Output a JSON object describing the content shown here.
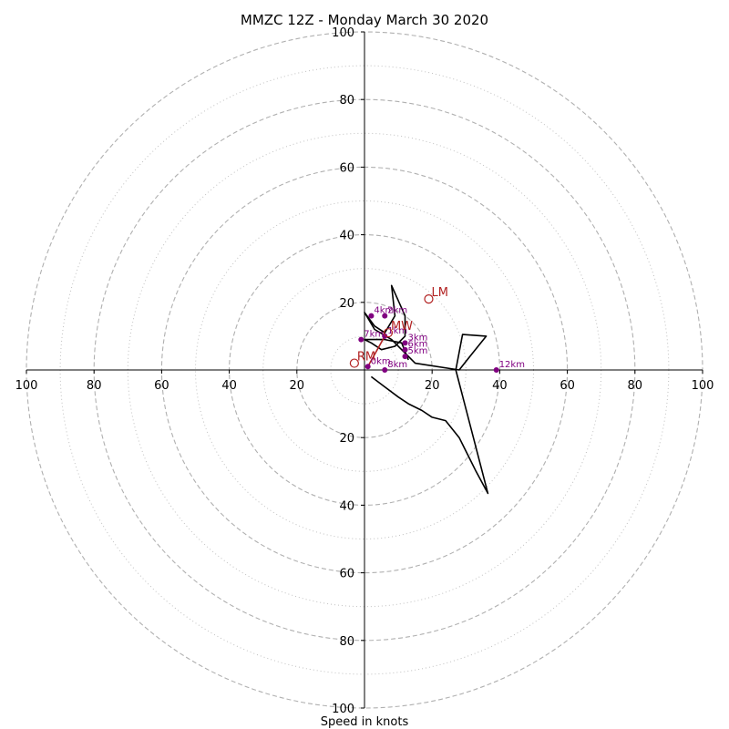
{
  "chart_data": {
    "type": "scatter",
    "title": "MMZC 12Z - Monday March 30 2020",
    "xlabel": "Speed in knots",
    "range": [
      -100,
      100
    ],
    "ring_major": [
      20,
      40,
      60,
      80,
      100
    ],
    "ring_minor": [
      10,
      30,
      50,
      70,
      90
    ],
    "tick_labels": {
      "right": [
        "20",
        "40",
        "60",
        "80",
        "100"
      ],
      "left": [
        "20",
        "40",
        "60",
        "80",
        "100"
      ],
      "up": [
        "20",
        "40",
        "60",
        "80",
        "100"
      ],
      "down": [
        "20",
        "40",
        "60",
        "80",
        "100"
      ]
    },
    "hodograph": {
      "name": "hodograph",
      "points": [
        [
          2,
          -2
        ],
        [
          6,
          -5
        ],
        [
          10,
          -8
        ],
        [
          13,
          -10
        ],
        [
          17,
          -12
        ],
        [
          20,
          -14
        ],
        [
          24,
          -15
        ],
        [
          28,
          -20
        ],
        [
          33,
          -30
        ],
        [
          36.5,
          -36.5
        ],
        [
          27,
          0
        ],
        [
          29,
          10.5
        ],
        [
          36,
          10
        ],
        [
          32,
          5
        ],
        [
          28,
          0
        ],
        [
          15,
          2
        ],
        [
          8,
          9
        ],
        [
          3,
          12
        ],
        [
          0,
          17
        ],
        [
          3,
          13
        ],
        [
          6,
          11
        ],
        [
          9,
          16
        ],
        [
          8,
          25
        ],
        [
          12,
          16
        ],
        [
          12,
          10
        ],
        [
          9,
          7
        ],
        [
          5,
          6
        ],
        [
          2,
          8
        ],
        [
          0,
          9
        ],
        [
          2,
          9
        ],
        [
          6,
          9
        ],
        [
          11,
          8
        ],
        [
          13,
          3
        ]
      ]
    },
    "height_markers": [
      {
        "label": "0km",
        "u": 1,
        "v": 1
      },
      {
        "label": "1km",
        "u": 6,
        "v": 10
      },
      {
        "label": "2km",
        "u": 6,
        "v": 16
      },
      {
        "label": "3km",
        "u": 12,
        "v": 8
      },
      {
        "label": "4km",
        "u": 2,
        "v": 16
      },
      {
        "label": "5km",
        "u": 12,
        "v": 4
      },
      {
        "label": "6km",
        "u": 12,
        "v": 6
      },
      {
        "label": "7km",
        "u": -1,
        "v": 9
      },
      {
        "label": "8km",
        "u": 6,
        "v": 0
      },
      {
        "label": "12km",
        "u": 39,
        "v": 0
      }
    ],
    "motion_vector": {
      "from": [
        1,
        1
      ],
      "to": [
        6,
        10
      ]
    },
    "storm_motion": [
      {
        "label": "LM",
        "u": 19,
        "v": 21
      },
      {
        "label": "MW",
        "u": 7,
        "v": 11
      },
      {
        "label": "RM",
        "u": -3,
        "v": 2
      }
    ],
    "colors": {
      "hodograph": "#000000",
      "markers": "#800080",
      "storm_motion": "#b22222",
      "grid": "#b0b0b0"
    }
  }
}
